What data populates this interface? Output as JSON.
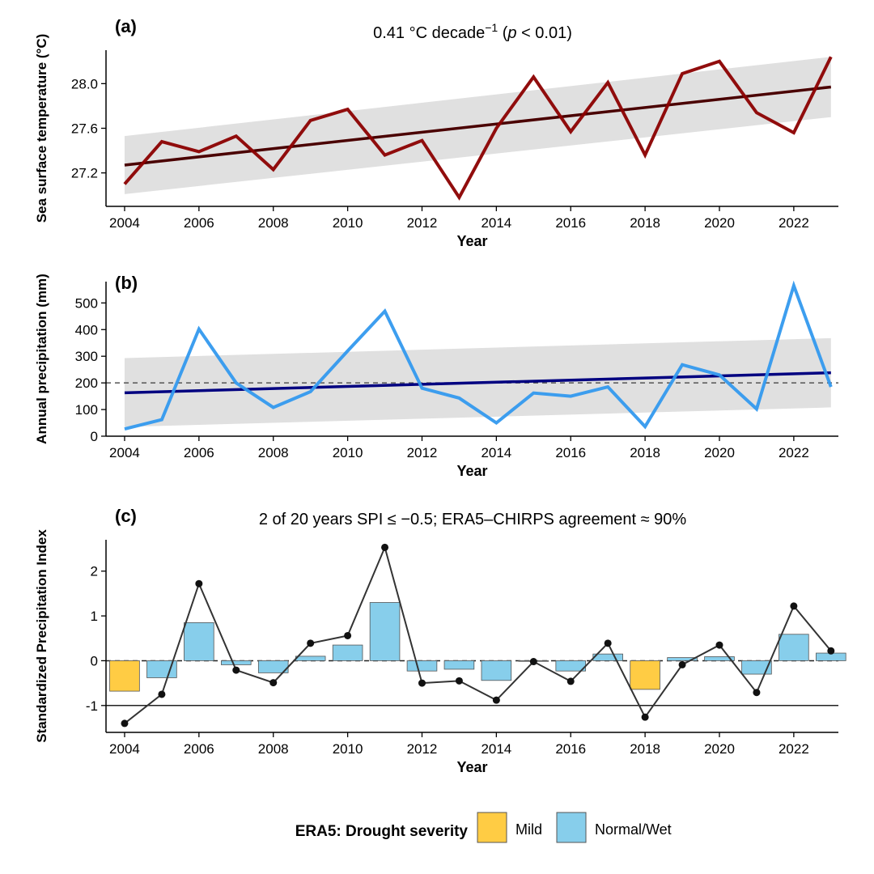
{
  "chart_data": [
    {
      "type": "line",
      "panel_label": "(a)",
      "title_parts": {
        "prefix": "0.41 °C decade",
        "sup": "−1",
        "open": " (",
        "p": "p",
        "rest": " < 0.01)"
      },
      "xlabel": "Year",
      "ylabel": "Sea surface temperature (°C)",
      "x": [
        2004,
        2005,
        2006,
        2007,
        2008,
        2009,
        2010,
        2011,
        2012,
        2013,
        2014,
        2015,
        2016,
        2017,
        2018,
        2019,
        2020,
        2021,
        2022,
        2023
      ],
      "xlim": [
        2003.5,
        2023.2
      ],
      "ylim": [
        26.9,
        28.3
      ],
      "xticks": [
        2004,
        2006,
        2008,
        2010,
        2012,
        2014,
        2016,
        2018,
        2020,
        2022
      ],
      "yticks": [
        27.2,
        27.6,
        28.0
      ],
      "ytick_labels": [
        "27.2",
        "27.6",
        "28.0"
      ],
      "series": [
        {
          "name": "SST",
          "values": [
            27.1,
            27.48,
            27.39,
            27.53,
            27.23,
            27.67,
            27.77,
            27.36,
            27.49,
            26.98,
            27.6,
            28.06,
            27.57,
            28.01,
            27.36,
            28.09,
            28.2,
            27.74,
            27.56,
            28.24
          ],
          "color": "#8b0000"
        }
      ],
      "trend": {
        "start": 27.27,
        "end": 27.97,
        "color": "#4a0000"
      },
      "ci_band": {
        "lower": [
          27.01,
          27.7
        ],
        "upper": [
          27.53,
          28.24
        ],
        "color": "#e0e0e0"
      }
    },
    {
      "type": "line",
      "panel_label": "(b)",
      "xlabel": "Year",
      "ylabel": "Annual precipitation (mm)",
      "x": [
        2004,
        2005,
        2006,
        2007,
        2008,
        2009,
        2010,
        2011,
        2012,
        2013,
        2014,
        2015,
        2016,
        2017,
        2018,
        2019,
        2020,
        2021,
        2022,
        2023
      ],
      "xlim": [
        2003.5,
        2023.2
      ],
      "ylim": [
        0,
        580
      ],
      "xticks": [
        2004,
        2006,
        2008,
        2010,
        2012,
        2014,
        2016,
        2018,
        2020,
        2022
      ],
      "yticks": [
        0,
        100,
        200,
        300,
        400,
        500
      ],
      "ytick_labels": [
        "0",
        "100",
        "200",
        "300",
        "400",
        "500"
      ],
      "reference_line": 200,
      "series": [
        {
          "name": "Annual precipitation",
          "values": [
            27,
            62,
            402,
            200,
            108,
            167,
            320,
            469,
            180,
            143,
            50,
            162,
            150,
            185,
            36,
            268,
            230,
            102,
            565,
            185
          ],
          "color": "#3399ee"
        }
      ],
      "trend": {
        "start": 163,
        "end": 238,
        "color": "#000080"
      },
      "ci_band": {
        "lower": [
          35,
          108
        ],
        "upper": [
          293,
          368
        ],
        "color": "#e0e0e0"
      }
    },
    {
      "type": "bar",
      "panel_label": "(c)",
      "title": "2 of 20 years SPI ≤ −0.5; ERA5–CHIRPS agreement ≈ 90%",
      "xlabel": "Year",
      "ylabel": "Standardized Precipitation Index",
      "x": [
        2004,
        2005,
        2006,
        2007,
        2008,
        2009,
        2010,
        2011,
        2012,
        2013,
        2014,
        2015,
        2016,
        2017,
        2018,
        2019,
        2020,
        2021,
        2022,
        2023
      ],
      "xlim": [
        2003.5,
        2023.2
      ],
      "ylim": [
        -1.6,
        2.7
      ],
      "xticks": [
        2004,
        2006,
        2008,
        2010,
        2012,
        2014,
        2016,
        2018,
        2020,
        2022
      ],
      "yticks": [
        -1,
        0,
        1,
        2
      ],
      "ytick_labels": [
        "-1",
        "0",
        "1",
        "2"
      ],
      "reference_lines": [
        0,
        -1
      ],
      "bars": {
        "name": "ERA5",
        "values": [
          -0.68,
          -0.38,
          0.85,
          -0.09,
          -0.27,
          0.1,
          0.35,
          1.3,
          -0.23,
          -0.19,
          -0.44,
          0.0,
          -0.23,
          0.15,
          -0.64,
          0.07,
          0.09,
          -0.3,
          0.59,
          0.17
        ],
        "category": [
          "Mild",
          "Normal/Wet",
          "Normal/Wet",
          "Normal/Wet",
          "Normal/Wet",
          "Normal/Wet",
          "Normal/Wet",
          "Normal/Wet",
          "Normal/Wet",
          "Normal/Wet",
          "Normal/Wet",
          "Normal/Wet",
          "Normal/Wet",
          "Normal/Wet",
          "Mild",
          "Normal/Wet",
          "Normal/Wet",
          "Normal/Wet",
          "Normal/Wet",
          "Normal/Wet"
        ]
      },
      "series": [
        {
          "name": "CHIRPS",
          "values": [
            -1.4,
            -0.75,
            1.72,
            -0.21,
            -0.49,
            0.39,
            0.56,
            2.53,
            -0.5,
            -0.45,
            -0.88,
            -0.02,
            -0.46,
            0.39,
            -1.26,
            -0.09,
            0.35,
            -0.71,
            1.22,
            0.22
          ],
          "color": "#333333"
        }
      ]
    }
  ],
  "legend": {
    "title": "ERA5: Drought severity",
    "items": [
      {
        "label": "Mild",
        "color": "#ffcc44"
      },
      {
        "label": "Normal/Wet",
        "color": "#87ceeb"
      }
    ]
  }
}
